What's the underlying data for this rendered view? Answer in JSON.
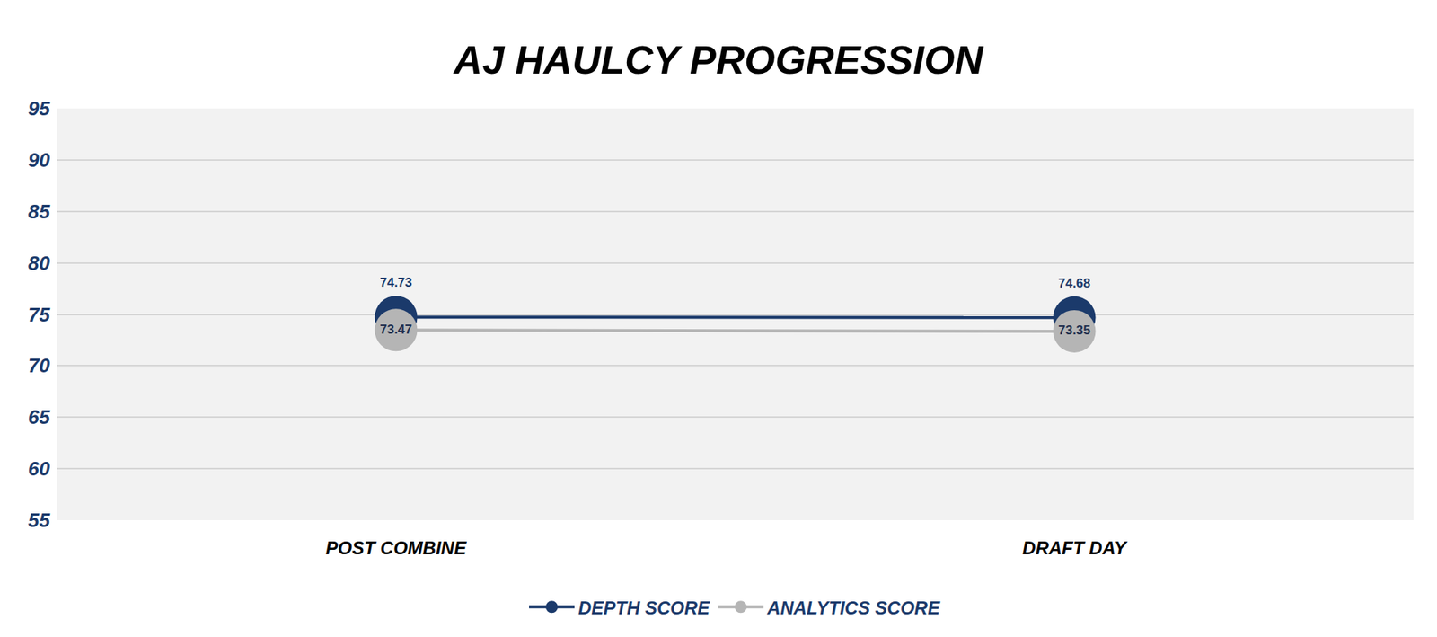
{
  "chart_data": {
    "type": "line",
    "title": "AJ HAULCY PROGRESSION",
    "categories": [
      "POST COMBINE",
      "DRAFT DAY"
    ],
    "series": [
      {
        "name": "DEPTH SCORE",
        "color": "#1b3a6b",
        "values": [
          74.73,
          74.68
        ]
      },
      {
        "name": "ANALYTICS SCORE",
        "color": "#b5b5b5",
        "values": [
          73.47,
          73.35
        ]
      }
    ],
    "ylim": [
      55,
      95
    ],
    "yticks": [
      55,
      60,
      65,
      70,
      75,
      80,
      85,
      90,
      95
    ],
    "grid": true,
    "legend": "bottom",
    "data_labels": true,
    "marker": "circle"
  }
}
